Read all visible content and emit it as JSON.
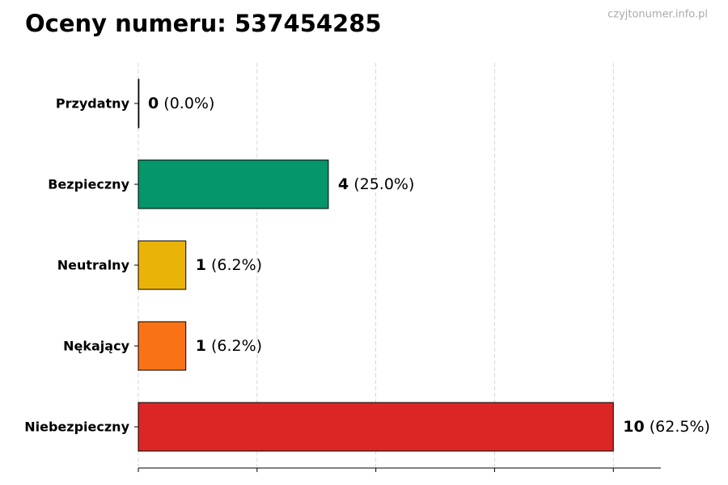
{
  "chart_data": {
    "type": "bar",
    "orientation": "horizontal",
    "title": "Oceny numeru: 537454285",
    "watermark": "czyjtonumer.info.pl",
    "categories": [
      "Przydatny",
      "Bezpieczny",
      "Neutralny",
      "Nękający",
      "Niebezpieczny"
    ],
    "values": [
      0,
      4,
      1,
      1,
      10
    ],
    "share_labels": [
      "(0.0%)",
      "(25.0%)",
      "(6.2%)",
      "(6.2%)",
      "(62.5%)"
    ],
    "colors": [
      "#2563eb",
      "#059669",
      "#eab308",
      "#f97316",
      "#dc2626"
    ],
    "xlim": [
      0,
      11
    ],
    "xticks": [
      0,
      2.5,
      5,
      7.5,
      10
    ],
    "grid": true
  }
}
